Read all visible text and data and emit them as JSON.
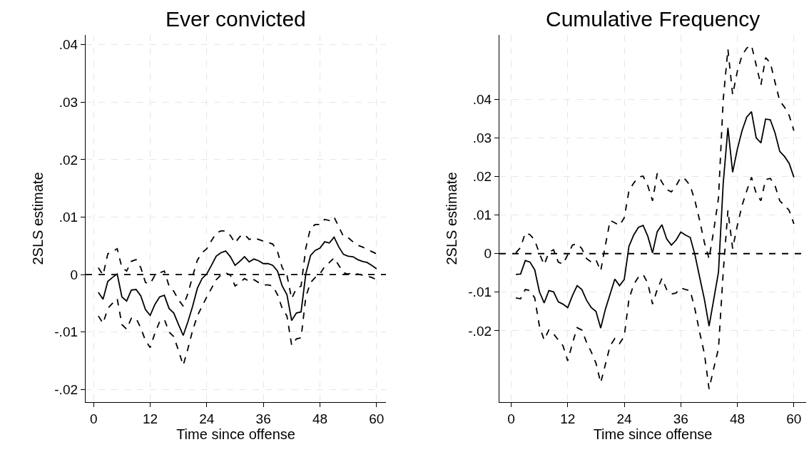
{
  "chart_data": [
    {
      "type": "line",
      "title": "Ever convicted",
      "xlabel": "Time since offense",
      "ylabel": "2SLS estimate",
      "x": [
        1,
        2,
        3,
        4,
        5,
        6,
        7,
        8,
        9,
        10,
        11,
        12,
        13,
        14,
        15,
        16,
        17,
        18,
        19,
        20,
        21,
        22,
        23,
        24,
        25,
        26,
        27,
        28,
        29,
        30,
        31,
        32,
        33,
        34,
        35,
        36,
        37,
        38,
        39,
        40,
        41,
        42,
        43,
        44,
        45,
        46,
        47,
        48,
        49,
        50,
        51,
        52,
        53,
        54,
        55,
        56,
        57,
        58,
        59,
        60
      ],
      "series": [
        {
          "color": "#000000",
          "line_style": "solid",
          "values": [
            -0.0031,
            -0.0043,
            -0.0012,
            -0.0005,
            0.0001,
            -0.0039,
            -0.0046,
            -0.0027,
            -0.0026,
            -0.0037,
            -0.0061,
            -0.0071,
            -0.0052,
            -0.0039,
            -0.0036,
            -0.0059,
            -0.0067,
            -0.0087,
            -0.0106,
            -0.0082,
            -0.0055,
            -0.0024,
            -0.0007,
            0.0001,
            0.0016,
            0.0032,
            0.0038,
            0.0041,
            0.0031,
            0.0016,
            0.0023,
            0.0031,
            0.0022,
            0.0027,
            0.0024,
            0.0019,
            0.0019,
            0.0016,
            0.0006,
            -0.002,
            -0.0035,
            -0.008,
            -0.0067,
            -0.0065,
            0.0001,
            0.0033,
            0.0042,
            0.0046,
            0.0057,
            0.0055,
            0.0065,
            0.0048,
            0.0035,
            0.0032,
            0.0031,
            0.0026,
            0.0023,
            0.0021,
            0.0016,
            0.001
          ]
        },
        {
          "color": "#000000",
          "line_style": "dashed",
          "values": [
            0.0012,
            -0.0001,
            0.0036,
            0.004,
            0.0045,
            0.0012,
            0.0006,
            0.0023,
            0.0026,
            0.0012,
            -0.0014,
            -0.0016,
            -0.0001,
            0.0003,
            0.0006,
            -0.002,
            -0.0029,
            -0.0044,
            -0.0055,
            -0.0033,
            -0.0003,
            0.0025,
            0.0038,
            0.0045,
            0.0059,
            0.0072,
            0.0076,
            0.0076,
            0.0068,
            0.0055,
            0.0066,
            0.007,
            0.0061,
            0.0064,
            0.0061,
            0.0058,
            0.0056,
            0.0053,
            0.004,
            0.0012,
            -0.0001,
            -0.0042,
            -0.0024,
            -0.002,
            0.0046,
            0.0081,
            0.0087,
            0.0087,
            0.0096,
            0.0094,
            0.01,
            0.0083,
            0.0066,
            0.0064,
            0.0057,
            0.0051,
            0.0048,
            0.0044,
            0.004,
            0.0036
          ]
        },
        {
          "color": "#000000",
          "line_style": "dashed",
          "values": [
            -0.0072,
            -0.0085,
            -0.0059,
            -0.005,
            -0.0042,
            -0.0087,
            -0.0095,
            -0.0076,
            -0.0076,
            -0.0093,
            -0.0115,
            -0.0127,
            -0.0102,
            -0.0082,
            -0.0078,
            -0.01,
            -0.0108,
            -0.0132,
            -0.0158,
            -0.0129,
            -0.0097,
            -0.0072,
            -0.0055,
            -0.0039,
            -0.0024,
            -0.0009,
            -0.0001,
            0.0003,
            -0.0001,
            -0.002,
            -0.0014,
            -0.0007,
            -0.0012,
            -0.0009,
            -0.0014,
            -0.0018,
            -0.0018,
            -0.002,
            -0.0035,
            -0.0059,
            -0.0072,
            -0.0123,
            -0.0112,
            -0.011,
            -0.0039,
            -0.0014,
            -0.0005,
            0.0001,
            0.0014,
            0.0021,
            0.0029,
            0.0016,
            0.0003,
            0.0001,
            0.0003,
            0.0001,
            -0.0001,
            -0.0003,
            -0.0005,
            -0.0009
          ]
        }
      ],
      "xlim": [
        -1.7,
        62
      ],
      "xticks": [
        0,
        12,
        24,
        36,
        48,
        60
      ],
      "ylim": [
        -0.0222,
        0.0417
      ],
      "yticks": [
        {
          "value": -0.02,
          "label": "-.02"
        },
        {
          "value": -0.01,
          "label": "-.01"
        },
        0,
        {
          "value": 0.01,
          "label": ".01"
        },
        {
          "value": 0.02,
          "label": ".02"
        },
        {
          "value": 0.03,
          "label": ".03"
        },
        {
          "value": 0.04,
          "label": ".04"
        }
      ],
      "ref_lines": [
        {
          "axis": "y",
          "value": 0,
          "color": "#000000",
          "line_style": "dashed"
        }
      ],
      "grid": true
    },
    {
      "type": "line",
      "title": "Cumulative Frequency",
      "xlabel": "Time since offense",
      "ylabel": "2SLS estimate",
      "x": [
        1,
        2,
        3,
        4,
        5,
        6,
        7,
        8,
        9,
        10,
        11,
        12,
        13,
        14,
        15,
        16,
        17,
        18,
        19,
        20,
        21,
        22,
        23,
        24,
        25,
        26,
        27,
        28,
        29,
        30,
        31,
        32,
        33,
        34,
        35,
        36,
        37,
        38,
        39,
        40,
        41,
        42,
        43,
        44,
        45,
        46,
        47,
        48,
        49,
        50,
        51,
        52,
        53,
        54,
        55,
        56,
        57,
        58,
        59,
        60
      ],
      "series": [
        {
          "color": "#000000",
          "line_style": "solid",
          "values": [
            -0.0054,
            -0.0053,
            -0.0018,
            -0.0022,
            -0.0042,
            -0.0099,
            -0.0128,
            -0.0096,
            -0.0099,
            -0.0125,
            -0.0131,
            -0.014,
            -0.0109,
            -0.0083,
            -0.0093,
            -0.0121,
            -0.014,
            -0.015,
            -0.0193,
            -0.0144,
            -0.0105,
            -0.0066,
            -0.0083,
            -0.0067,
            0.0019,
            0.0048,
            0.0068,
            0.0073,
            0.0045,
            0.0002,
            0.0057,
            0.0075,
            0.0038,
            0.0022,
            0.0035,
            0.0056,
            0.0048,
            0.0042,
            -0.0003,
            -0.0061,
            -0.0118,
            -0.0188,
            -0.0118,
            -0.0048,
            0.0182,
            0.0326,
            0.0211,
            0.0271,
            0.0319,
            0.0354,
            0.0368,
            0.03,
            0.0287,
            0.0349,
            0.0347,
            0.0313,
            0.0265,
            0.0252,
            0.0234,
            0.0198
          ]
        },
        {
          "color": "#000000",
          "line_style": "dashed",
          "values": [
            0.0002,
            0.0016,
            0.0054,
            0.0049,
            0.0035,
            0.0,
            -0.0029,
            0.0003,
            0.001,
            -0.0022,
            -0.0027,
            -0.0003,
            0.0022,
            0.0026,
            0.0013,
            -0.0013,
            -0.0022,
            -0.0016,
            -0.0045,
            0.0022,
            0.0086,
            0.008,
            0.0073,
            0.0093,
            0.0163,
            0.0183,
            0.0198,
            0.0201,
            0.0176,
            0.0137,
            0.0208,
            0.0185,
            0.0166,
            0.016,
            0.0176,
            0.0198,
            0.0192,
            0.0176,
            0.0137,
            0.0086,
            0.0029,
            -0.0013,
            0.0061,
            0.0144,
            0.0399,
            0.053,
            0.0412,
            0.0473,
            0.0514,
            0.0533,
            0.054,
            0.0489,
            0.0437,
            0.0508,
            0.0495,
            0.0444,
            0.0396,
            0.038,
            0.0358,
            0.0319
          ]
        },
        {
          "color": "#000000",
          "line_style": "dashed",
          "values": [
            -0.0115,
            -0.0117,
            -0.0093,
            -0.0096,
            -0.0115,
            -0.0188,
            -0.0224,
            -0.0198,
            -0.0208,
            -0.0224,
            -0.0239,
            -0.0278,
            -0.0233,
            -0.0192,
            -0.0198,
            -0.023,
            -0.0255,
            -0.0284,
            -0.0335,
            -0.0287,
            -0.0239,
            -0.022,
            -0.0233,
            -0.0214,
            -0.0118,
            -0.008,
            -0.0061,
            -0.0054,
            -0.0077,
            -0.0131,
            -0.0093,
            -0.0064,
            -0.0093,
            -0.0105,
            -0.0102,
            -0.0089,
            -0.0093,
            -0.0096,
            -0.0144,
            -0.0204,
            -0.0259,
            -0.0351,
            -0.0297,
            -0.0246,
            -0.0048,
            0.0112,
            0.0013,
            0.0073,
            0.0125,
            0.0163,
            0.0198,
            0.0156,
            0.0137,
            0.0192,
            0.0195,
            0.0176,
            0.0137,
            0.0125,
            0.0112,
            0.0077
          ]
        }
      ],
      "xlim": [
        -2.5,
        62.6
      ],
      "xticks": [
        0,
        12,
        24,
        36,
        48,
        60
      ],
      "ylim": [
        -0.0385,
        0.0567
      ],
      "yticks": [
        {
          "value": -0.02,
          "label": "-.02"
        },
        {
          "value": -0.01,
          "label": "-.01"
        },
        0,
        {
          "value": 0.01,
          "label": ".01"
        },
        {
          "value": 0.02,
          "label": ".02"
        },
        {
          "value": 0.03,
          "label": ".03"
        },
        {
          "value": 0.04,
          "label": ".04"
        }
      ],
      "ref_lines": [
        {
          "axis": "y",
          "value": 0,
          "color": "#000000",
          "line_style": "dashed"
        }
      ],
      "grid": true
    }
  ]
}
